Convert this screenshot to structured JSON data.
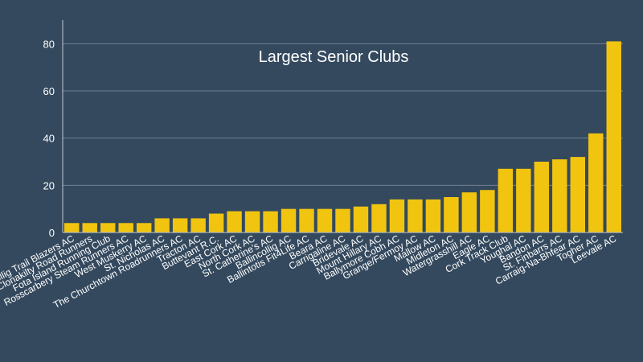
{
  "chart_data": {
    "type": "bar",
    "title": "Largest Senior Clubs",
    "xlabel": "",
    "ylabel": "",
    "ylim": [
      0,
      90
    ],
    "yticks": [
      0,
      20,
      40,
      60,
      80
    ],
    "grid": true,
    "bar_color": "#f1c40f",
    "background": "#34495e",
    "categories": [
      "Ballincollig Trail Blazers AC",
      "Clonakilty Road Runners",
      "Fota Island Running Club",
      "Rosscarbery Steam Runners AC",
      "West Muskerry AC",
      "St. Nicholas AC",
      "The Churchtown Roadrunners AC",
      "Tracton AC",
      "Buttevant R.C.",
      "East Cork AC",
      "North Cork AC",
      "St. Catherine's AC",
      "Ballincollig AC",
      "Ballintotis Fit4Life AC",
      "Beara AC",
      "Carrigaline AC",
      "Bridevale AC",
      "Mount Hillary AC",
      "Ballymore Cobh AC",
      "Grange/Fermoy AC",
      "Mallow AC",
      "Midleton AC",
      "Watergrasshill AC",
      "Eagle AC",
      "Cork Track Club",
      "Youghal AC",
      "Bandon AC",
      "St. Finbarrs AC",
      "Carraig-Na-Bhfear AC",
      "Togher AC",
      "Leevale AC"
    ],
    "values": [
      4,
      4,
      4,
      4,
      4,
      6,
      6,
      6,
      8,
      9,
      9,
      9,
      10,
      10,
      10,
      10,
      11,
      12,
      14,
      14,
      14,
      15,
      17,
      18,
      27,
      27,
      30,
      31,
      32,
      42,
      81
    ]
  }
}
